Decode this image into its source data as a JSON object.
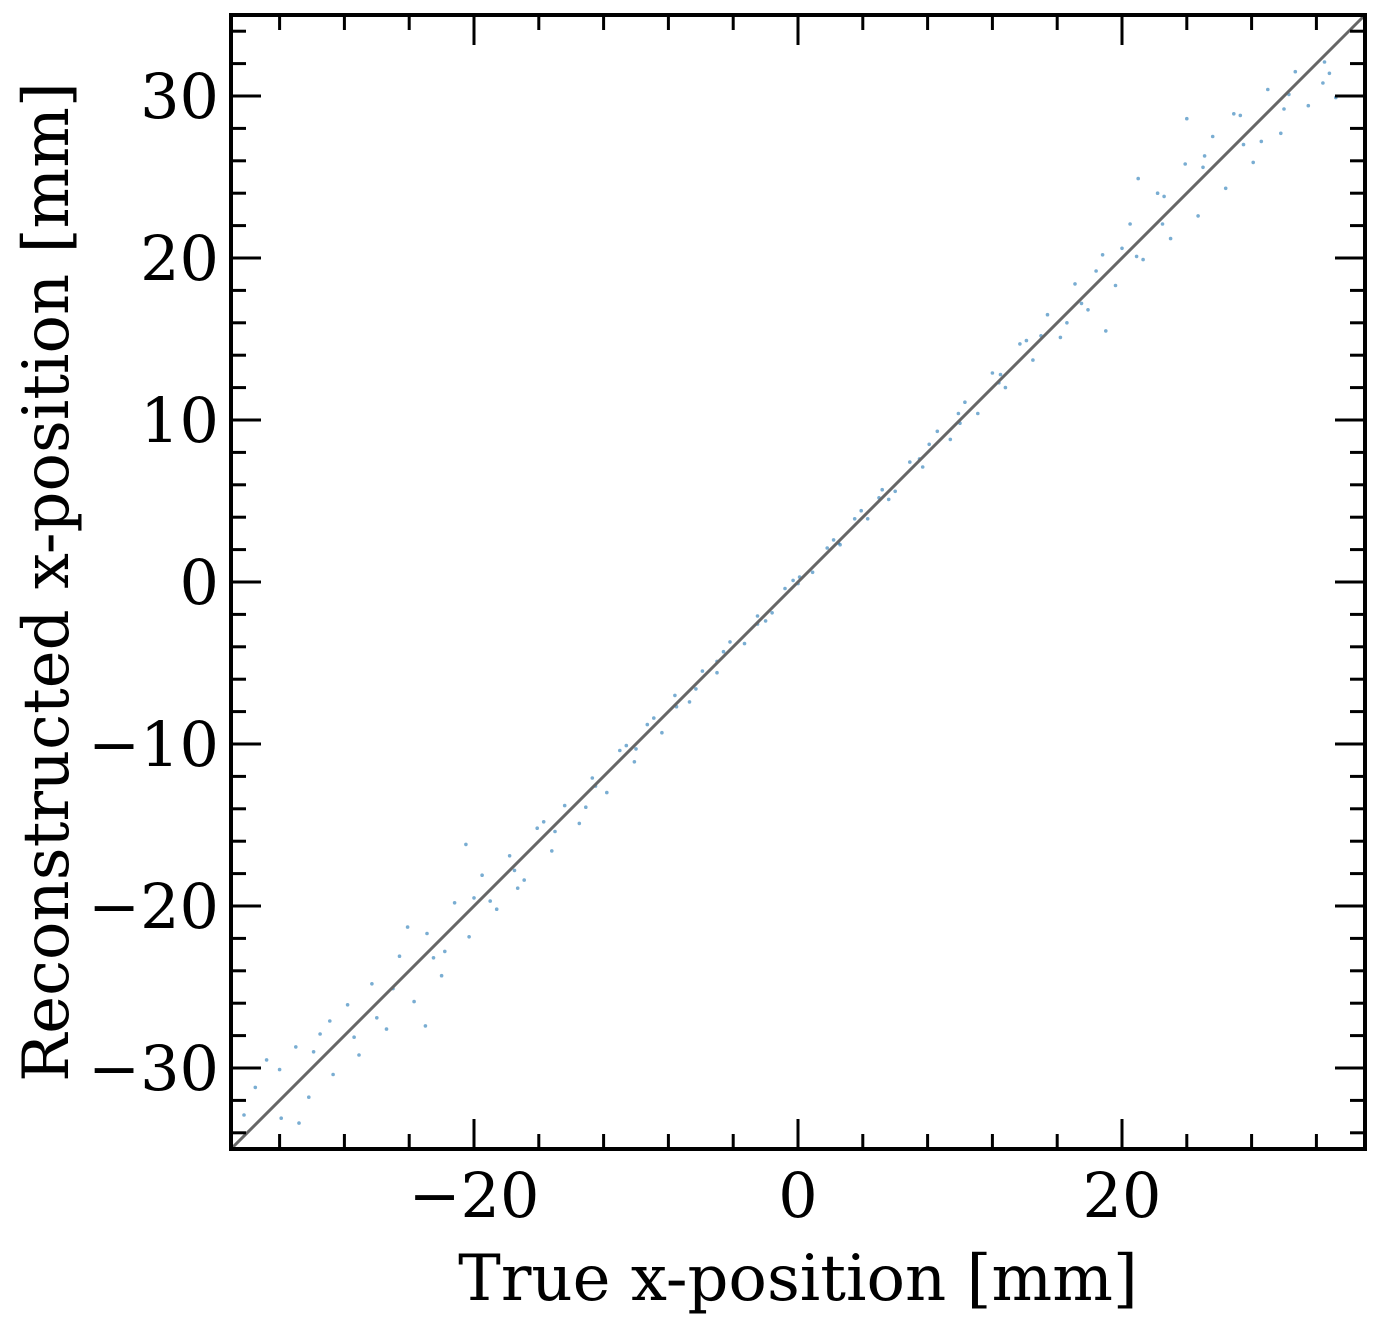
{
  "chart_data": {
    "type": "scatter",
    "xlabel": "True x-position [mm]",
    "ylabel": "Reconstructed x-position [mm]",
    "xlim": [
      -35,
      35
    ],
    "ylim": [
      -35,
      35
    ],
    "xticks": [
      -20,
      0,
      20
    ],
    "xtick_labels": [
      "−20",
      "0",
      "20"
    ],
    "yticks": [
      -30,
      -20,
      -10,
      0,
      10,
      20,
      30
    ],
    "ytick_labels": [
      "−30",
      "−20",
      "−10",
      "0",
      "10",
      "20",
      "30"
    ],
    "minor_tick_step": 4,
    "ytick_minor_step": 2,
    "grid": false,
    "legend": "none",
    "point_color": "#1f77b4",
    "reference_line": {
      "x": [
        -35,
        35
      ],
      "y": [
        -35,
        35
      ],
      "color": "#666666"
    },
    "series": [
      {
        "points": [
          [
            -33.5,
            -31.2
          ],
          [
            -32.8,
            -29.5
          ],
          [
            -31.9,
            -33.1
          ],
          [
            -31.0,
            -28.7
          ],
          [
            -30.2,
            -31.8
          ],
          [
            -29.5,
            -27.9
          ],
          [
            -28.7,
            -30.4
          ],
          [
            -27.8,
            -26.1
          ],
          [
            -27.1,
            -29.2
          ],
          [
            -26.3,
            -24.8
          ],
          [
            -25.4,
            -27.6
          ],
          [
            -24.6,
            -23.1
          ],
          [
            -23.7,
            -25.9
          ],
          [
            -22.9,
            -21.7
          ],
          [
            -22.0,
            -24.3
          ],
          [
            -21.2,
            -19.8
          ],
          [
            -20.3,
            -21.9
          ],
          [
            -19.5,
            -18.1
          ],
          [
            -18.6,
            -20.2
          ],
          [
            -17.8,
            -16.9
          ],
          [
            -16.9,
            -18.4
          ],
          [
            -16.1,
            -15.2
          ],
          [
            -15.2,
            -16.6
          ],
          [
            -14.4,
            -13.8
          ],
          [
            -13.5,
            -14.9
          ],
          [
            -12.7,
            -12.1
          ],
          [
            -11.8,
            -13.0
          ],
          [
            -11.0,
            -10.4
          ],
          [
            -10.1,
            -11.1
          ],
          [
            -9.3,
            -8.8
          ],
          [
            -8.4,
            -9.3
          ],
          [
            -7.6,
            -7.0
          ],
          [
            -6.7,
            -7.4
          ],
          [
            -5.9,
            -5.5
          ],
          [
            -5.0,
            -5.6
          ],
          [
            -4.2,
            -3.7
          ],
          [
            -3.3,
            -3.8
          ],
          [
            -2.5,
            -2.1
          ],
          [
            -1.6,
            -1.9
          ],
          [
            -0.8,
            -0.4
          ],
          [
            0.1,
            0.3
          ],
          [
            0.9,
            0.6
          ],
          [
            1.8,
            2.1
          ],
          [
            2.6,
            2.3
          ],
          [
            3.5,
            3.9
          ],
          [
            4.3,
            3.9
          ],
          [
            5.2,
            5.7
          ],
          [
            6.0,
            5.6
          ],
          [
            6.9,
            7.4
          ],
          [
            7.7,
            7.1
          ],
          [
            8.6,
            9.3
          ],
          [
            9.4,
            8.8
          ],
          [
            10.3,
            11.1
          ],
          [
            11.1,
            10.4
          ],
          [
            12.0,
            12.9
          ],
          [
            12.8,
            12.0
          ],
          [
            13.7,
            14.7
          ],
          [
            14.5,
            13.7
          ],
          [
            15.4,
            16.5
          ],
          [
            16.2,
            15.1
          ],
          [
            17.1,
            18.4
          ],
          [
            17.9,
            16.8
          ],
          [
            18.8,
            20.2
          ],
          [
            19.6,
            18.3
          ],
          [
            20.5,
            22.1
          ],
          [
            21.3,
            19.9
          ],
          [
            22.2,
            24.0
          ],
          [
            23.0,
            21.2
          ],
          [
            23.9,
            25.8
          ],
          [
            24.7,
            22.6
          ],
          [
            25.6,
            27.5
          ],
          [
            26.4,
            24.3
          ],
          [
            27.3,
            28.8
          ],
          [
            28.1,
            25.9
          ],
          [
            29.0,
            30.4
          ],
          [
            29.8,
            27.7
          ],
          [
            30.7,
            31.5
          ],
          [
            31.5,
            29.4
          ],
          [
            32.4,
            30.8
          ],
          [
            33.2,
            29.9
          ],
          [
            -34.2,
            -32.9
          ],
          [
            -30.8,
            -33.4
          ],
          [
            -28.9,
            -27.1
          ],
          [
            -26.0,
            -26.9
          ],
          [
            -24.1,
            -21.3
          ],
          [
            -21.8,
            -22.8
          ],
          [
            -19.0,
            -19.7
          ],
          [
            -17.3,
            -18.9
          ],
          [
            -15.7,
            -14.8
          ],
          [
            -13.1,
            -13.9
          ],
          [
            -10.6,
            -10.1
          ],
          [
            -8.9,
            -8.4
          ],
          [
            -6.3,
            -6.6
          ],
          [
            -4.6,
            -4.3
          ],
          [
            -2.0,
            -2.4
          ],
          [
            -0.3,
            0.1
          ],
          [
            2.2,
            2.6
          ],
          [
            3.9,
            4.4
          ],
          [
            5.6,
            5.1
          ],
          [
            8.1,
            8.5
          ],
          [
            9.9,
            10.4
          ],
          [
            12.4,
            12.3
          ],
          [
            14.1,
            14.9
          ],
          [
            16.6,
            16.0
          ],
          [
            18.4,
            19.2
          ],
          [
            20.9,
            20.1
          ],
          [
            22.6,
            23.8
          ],
          [
            25.1,
            26.3
          ],
          [
            26.9,
            28.9
          ],
          [
            28.6,
            27.2
          ],
          [
            30.3,
            30.1
          ],
          [
            32.8,
            31.4
          ],
          [
            -32.0,
            -30.1
          ],
          [
            -29.9,
            -29.0
          ],
          [
            -27.4,
            -28.1
          ],
          [
            -25.0,
            -25.1
          ],
          [
            -22.5,
            -23.2
          ],
          [
            -20.0,
            -19.5
          ],
          [
            -17.5,
            -17.8
          ],
          [
            -15.0,
            -15.4
          ],
          [
            -12.5,
            -12.6
          ],
          [
            -10.0,
            -10.3
          ],
          [
            -7.5,
            -7.7
          ],
          [
            -5.0,
            -4.9
          ],
          [
            -2.5,
            -2.6
          ],
          [
            0.0,
            -0.1
          ],
          [
            2.5,
            2.4
          ],
          [
            5.0,
            5.2
          ],
          [
            7.5,
            7.6
          ],
          [
            10.0,
            9.8
          ],
          [
            12.5,
            12.8
          ],
          [
            15.0,
            15.2
          ],
          [
            17.5,
            17.2
          ],
          [
            20.0,
            20.6
          ],
          [
            22.5,
            22.1
          ],
          [
            25.0,
            25.6
          ],
          [
            27.5,
            27.0
          ],
          [
            30.0,
            29.2
          ],
          [
            32.5,
            32.1
          ],
          [
            24.0,
            28.6
          ],
          [
            21.0,
            24.9
          ],
          [
            -23.0,
            -27.4
          ],
          [
            -20.5,
            -16.2
          ],
          [
            19.0,
            15.5
          ]
        ]
      }
    ]
  }
}
